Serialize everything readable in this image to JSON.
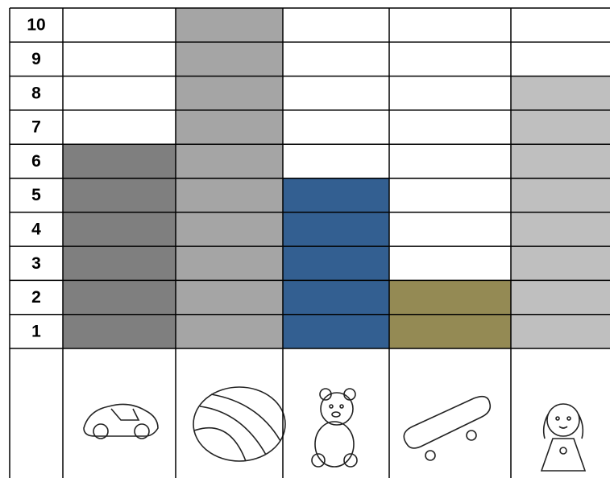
{
  "chart_data": {
    "type": "bar",
    "categories": [
      null,
      null,
      null,
      null,
      null
    ],
    "values": [
      6,
      10,
      5,
      2,
      8
    ],
    "colors": [
      "#7f7f7f",
      "#a5a5a5",
      "#335f91",
      "#948a54",
      "#bfbfbf"
    ],
    "ylim": [
      0,
      10
    ],
    "yticks": [
      1,
      2,
      3,
      4,
      5,
      6,
      7,
      8,
      9,
      10
    ],
    "grid": true
  }
}
